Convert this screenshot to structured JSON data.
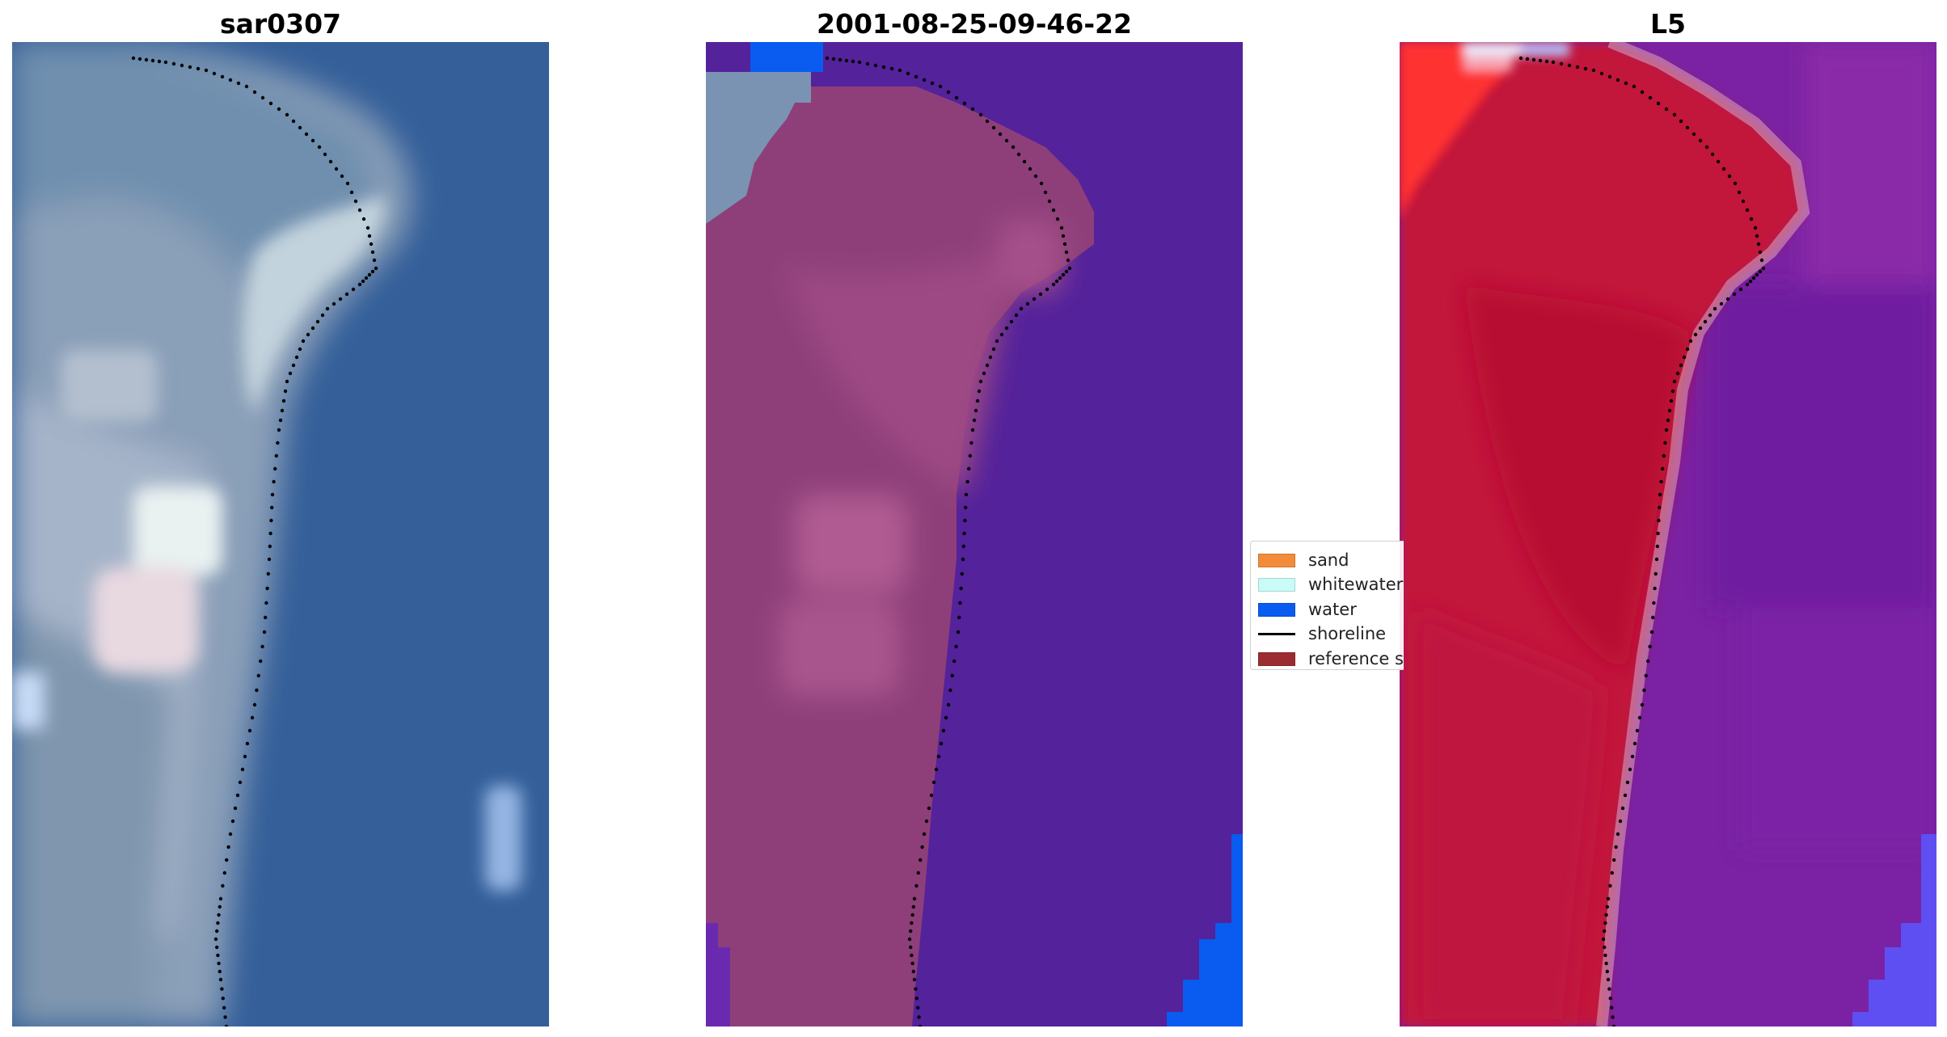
{
  "panels": [
    {
      "title": "sar0307"
    },
    {
      "title": "2001-08-25-09-46-22"
    },
    {
      "title": "L5"
    }
  ],
  "legend": {
    "items": [
      {
        "label": "sand",
        "color": "#f28c3a",
        "kind": "patch"
      },
      {
        "label": "whitewater",
        "color": "#c9fbf7",
        "kind": "patch"
      },
      {
        "label": "water",
        "color": "#0a5bf0",
        "kind": "patch"
      },
      {
        "label": "shoreline",
        "color": "#000000",
        "kind": "line"
      },
      {
        "label": "reference shoreline",
        "color": "#9b2c32",
        "kind": "patch"
      }
    ]
  },
  "colors": {
    "rgb_water": "#345f99",
    "rgb_land": "#8a9fb8",
    "rgb_bright_sand": "#dfe9ef",
    "classified_land": "#8e3f79",
    "classified_water": "#54229a",
    "classified_water_class": "#0a5bf0",
    "index_land": "#c2133a",
    "index_water": "#7a22a3",
    "index_edge": "#ff3030",
    "shoreline": "#000000"
  }
}
